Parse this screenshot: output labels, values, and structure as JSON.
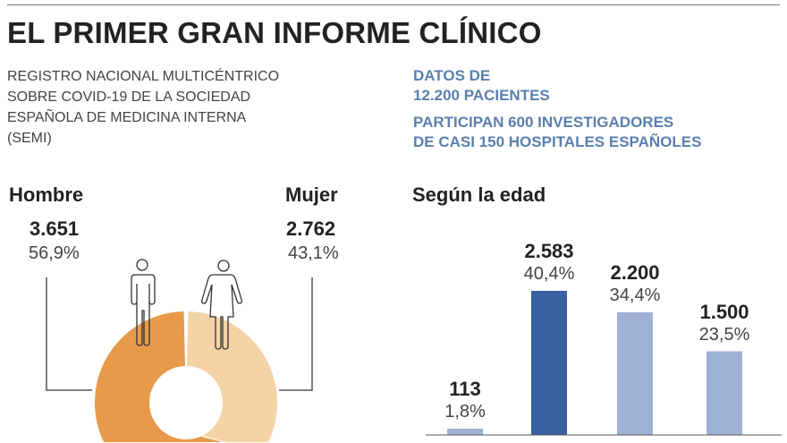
{
  "title": "EL PRIMER GRAN INFORME CLÍNICO",
  "subtitle_lines": [
    "REGISTRO NACIONAL MULTICÉNTRICO",
    "SOBRE COVID-19 DE LA SOCIEDAD",
    "ESPAÑOLA DE MEDICINA INTERNA",
    "(SEMI)"
  ],
  "info": {
    "data_lines": [
      "DATOS DE",
      "12.200 PACIENTES"
    ],
    "participants_lines": [
      "PARTICIPAN 600 INVESTIGADORES",
      "DE CASI 150 HOSPITALES ESPAÑOLES"
    ],
    "color": "#5a7fae"
  },
  "chart_data": [
    {
      "type": "pie",
      "style": "donut",
      "slices": [
        {
          "label": "Hombre",
          "value": 3651,
          "value_label": "3.651",
          "percent_label": "56,9%",
          "color": "#e69a4a",
          "icon": "man-icon"
        },
        {
          "label": "Mujer",
          "value": 2762,
          "value_label": "2.762",
          "percent_label": "43,1%",
          "color": "#f4d3a6",
          "icon": "woman-icon"
        }
      ]
    },
    {
      "type": "bar",
      "title": "Según la edad",
      "values": [
        113,
        2583,
        2200,
        1500
      ],
      "value_labels": [
        "113",
        "2.583",
        "2.200",
        "1.500"
      ],
      "percent_labels": [
        "1,8%",
        "40,4%",
        "34,4%",
        "23,5%"
      ],
      "colors": [
        "#9fb1d4",
        "#3a5fa3",
        "#9fb1d4",
        "#9fb1d4"
      ],
      "grid": false
    }
  ]
}
